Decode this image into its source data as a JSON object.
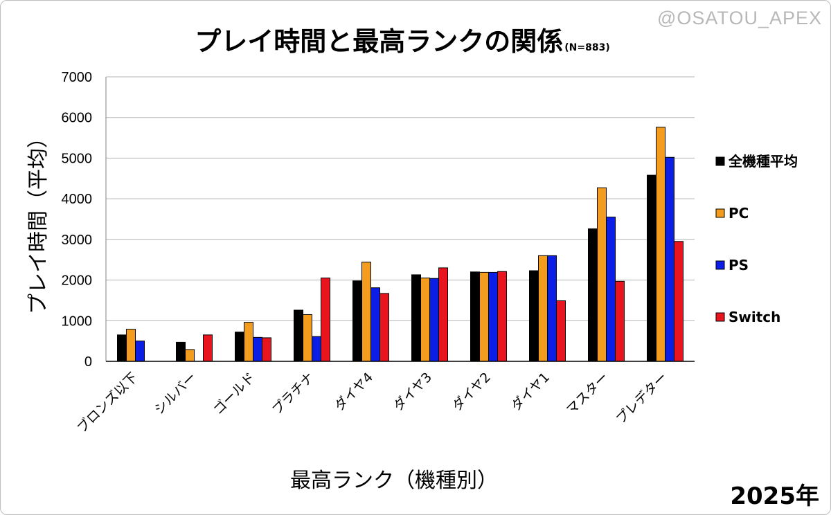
{
  "watermark": "@OSATOU_APEX",
  "year_label": "2025年",
  "chart_data": {
    "type": "bar",
    "title": "プレイ時間と最高ランクの関係",
    "subtitle": "(N=883)",
    "xlabel": "最高ランク（機種別）",
    "ylabel": "プレイ時間（平均）",
    "ylim": [
      0,
      7000
    ],
    "yticks": [
      0,
      1000,
      2000,
      3000,
      4000,
      5000,
      6000,
      7000
    ],
    "grid": true,
    "legend_position": "right",
    "categories": [
      "ブロンズ以下",
      "シルバー",
      "ゴールド",
      "プラチナ",
      "ダイヤ4",
      "ダイヤ3",
      "ダイヤ2",
      "ダイヤ1",
      "マスター",
      "プレデター"
    ],
    "series": [
      {
        "name": "全機種平均",
        "color": "#000000",
        "values": [
          650,
          470,
          720,
          1260,
          1980,
          2130,
          2200,
          2230,
          3260,
          4580
        ]
      },
      {
        "name": "PC",
        "color": "#f39c1e",
        "values": [
          790,
          290,
          960,
          1150,
          2440,
          2050,
          2190,
          2600,
          4270,
          5760
        ]
      },
      {
        "name": "PS",
        "color": "#0a1ee6",
        "values": [
          500,
          0,
          590,
          610,
          1810,
          2040,
          2190,
          2600,
          3550,
          5020
        ]
      },
      {
        "name": "Switch",
        "color": "#e8141e",
        "values": [
          0,
          650,
          580,
          2050,
          1670,
          2300,
          2210,
          1490,
          1970,
          2950
        ]
      }
    ]
  }
}
